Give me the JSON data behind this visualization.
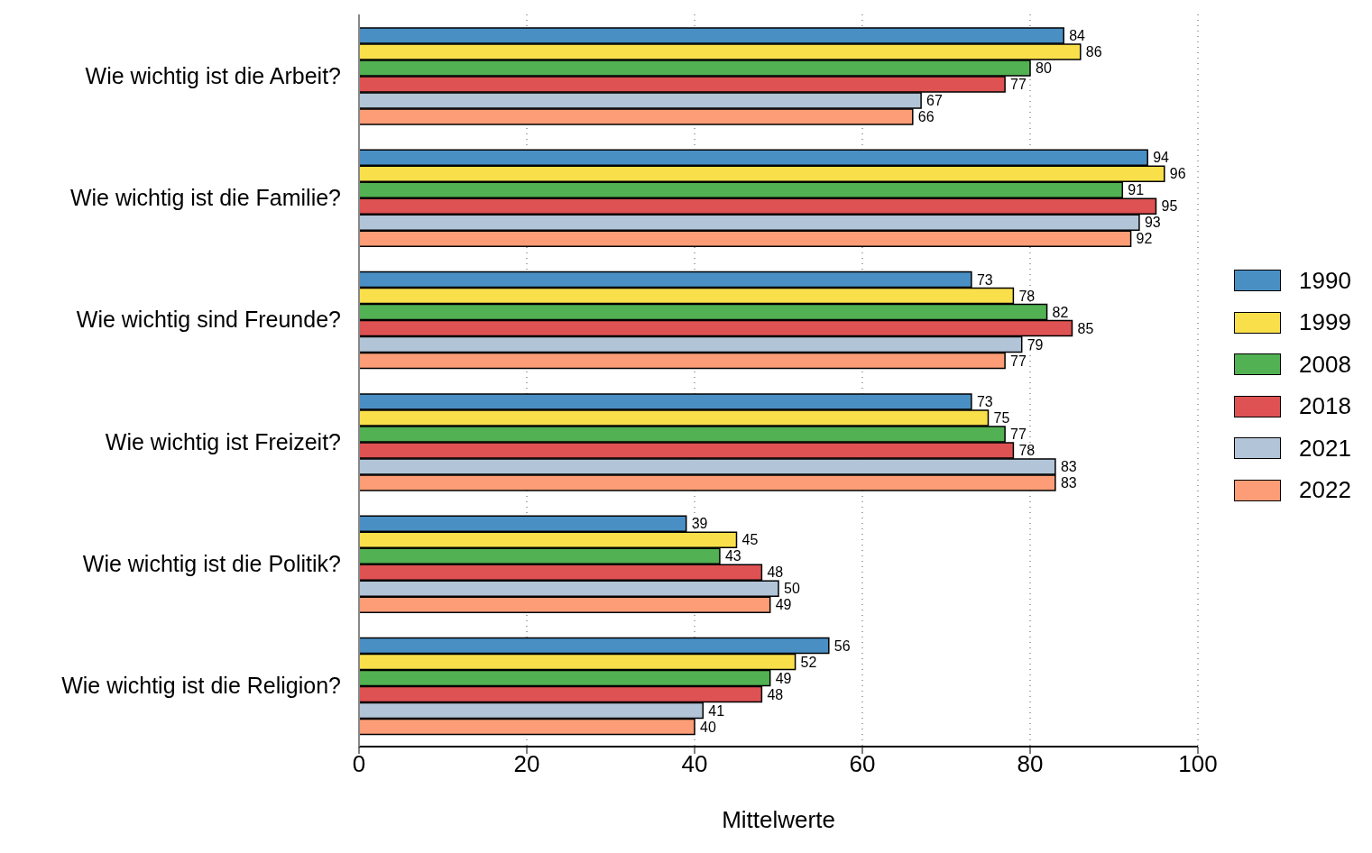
{
  "chart_data": {
    "type": "bar",
    "orientation": "horizontal",
    "xlabel": "Mittelwerte",
    "categories": [
      "Wie wichtig ist die Arbeit?",
      "Wie wichtig ist die Familie?",
      "Wie wichtig sind Freunde?",
      "Wie wichtig ist Freizeit?",
      "Wie wichtig ist die Politik?",
      "Wie wichtig ist die Religion?"
    ],
    "series": [
      {
        "name": "1990",
        "color": "#4a8fc4",
        "values": [
          84,
          94,
          73,
          73,
          39,
          56
        ]
      },
      {
        "name": "1999",
        "color": "#f9e04b",
        "values": [
          86,
          96,
          78,
          75,
          45,
          52
        ]
      },
      {
        "name": "2008",
        "color": "#52b152",
        "values": [
          80,
          91,
          82,
          77,
          43,
          49
        ]
      },
      {
        "name": "2018",
        "color": "#de5253",
        "values": [
          77,
          95,
          85,
          78,
          48,
          48
        ]
      },
      {
        "name": "2021",
        "color": "#b2c5d8",
        "values": [
          67,
          93,
          79,
          83,
          50,
          41
        ]
      },
      {
        "name": "2022",
        "color": "#fc9d77",
        "values": [
          66,
          92,
          77,
          83,
          49,
          40
        ]
      }
    ],
    "xlim": [
      0,
      100
    ],
    "xticks": [
      0,
      20,
      40,
      60,
      80,
      100
    ],
    "grid": "x",
    "legend": "right",
    "data_labels": true
  }
}
